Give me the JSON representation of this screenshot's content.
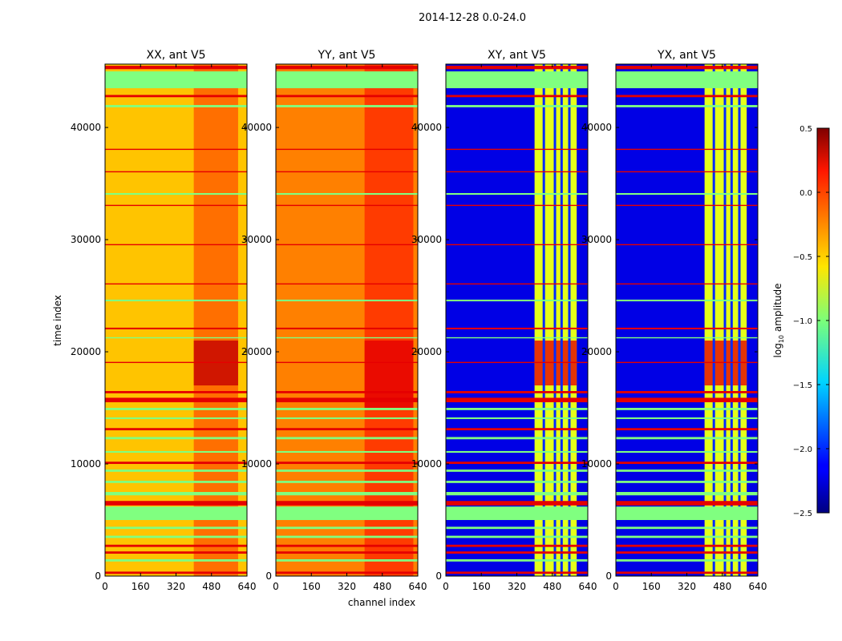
{
  "chart_data": {
    "type": "heatmap",
    "suptitle": "2014-12-28 0.0-24.0",
    "xlabel": "channel index",
    "ylabel": "time index",
    "xlim": [
      0,
      640
    ],
    "ylim": [
      0,
      45650
    ],
    "xticks": [
      "0",
      "160",
      "320",
      "480",
      "640"
    ],
    "xtick_values": [
      0,
      160,
      320,
      480,
      640
    ],
    "yticks": [
      "0",
      "10000",
      "20000",
      "30000",
      "40000"
    ],
    "ytick_values": [
      0,
      10000,
      20000,
      30000,
      40000
    ],
    "colorbar": {
      "label": "log10 amplitude",
      "label_main": "log",
      "label_sub": "10",
      "label_rest": " amplitude",
      "range": [
        -2.5,
        0.5
      ],
      "ticks": [
        "0.5",
        "0.0",
        "−0.5",
        "−1.0",
        "−1.5",
        "−2.0",
        "−2.5"
      ],
      "tick_values": [
        0.5,
        0.0,
        -0.5,
        -1.0,
        -1.5,
        -2.0,
        -2.5
      ],
      "colormap": "jet"
    },
    "panels": [
      {
        "title": "XX, ant V5",
        "base": -0.45,
        "band": [
          400,
          600
        ],
        "band_value": -0.2,
        "hot": [
          17000,
          21000
        ],
        "hot_value": 0.3,
        "band_lines": [],
        "band_line_value": -0.45
      },
      {
        "title": "YY, ant V5",
        "base": -0.25,
        "band": [
          400,
          620
        ],
        "band_value": -0.05,
        "hot": [
          15000,
          21000
        ],
        "hot_value": 0.2,
        "band_lines": [],
        "band_line_value": -0.25
      },
      {
        "title": "XY, ant V5",
        "base": -2.2,
        "band": [
          400,
          590
        ],
        "band_value": -0.7,
        "hot": [
          17000,
          21000
        ],
        "hot_value": 0.2,
        "band_lines": [
          440,
          490,
          520,
          555
        ],
        "band_line_value": -2.0
      },
      {
        "title": "YX, ant V5",
        "base": -2.2,
        "band": [
          400,
          590
        ],
        "band_value": -0.7,
        "hot": [
          17000,
          21000
        ],
        "hot_value": 0.2,
        "band_lines": [
          440,
          490,
          520,
          555
        ],
        "band_line_value": -2.0
      }
    ],
    "horizontal_flags": [
      {
        "t": [
          43500,
          45000
        ],
        "v": -1.0
      },
      {
        "t": [
          45200,
          45500
        ],
        "v": 0.2
      },
      {
        "t": [
          42700,
          42900
        ],
        "v": 0.2
      },
      {
        "t": [
          41800,
          42000
        ],
        "v": -1.0
      },
      {
        "t": [
          38000,
          38100
        ],
        "v": 0.2
      },
      {
        "t": [
          36000,
          36100
        ],
        "v": 0.2
      },
      {
        "t": [
          34000,
          34150
        ],
        "v": -1.0
      },
      {
        "t": [
          33000,
          33100
        ],
        "v": 0.2
      },
      {
        "t": [
          29500,
          29600
        ],
        "v": 0.2
      },
      {
        "t": [
          26000,
          26100
        ],
        "v": 0.2
      },
      {
        "t": [
          24500,
          24650
        ],
        "v": -1.0
      },
      {
        "t": [
          22000,
          22150
        ],
        "v": 0.2
      },
      {
        "t": [
          21200,
          21300
        ],
        "v": -1.0
      },
      {
        "t": [
          19000,
          19100
        ],
        "v": 0.2
      },
      {
        "t": [
          16300,
          16500
        ],
        "v": 0.2
      },
      {
        "t": [
          15500,
          15900
        ],
        "v": 0.2
      },
      {
        "t": [
          14800,
          15000
        ],
        "v": -1.0
      },
      {
        "t": [
          14000,
          14150
        ],
        "v": -1.0
      },
      {
        "t": [
          13000,
          13200
        ],
        "v": 0.2
      },
      {
        "t": [
          12200,
          12400
        ],
        "v": -1.0
      },
      {
        "t": [
          11000,
          11150
        ],
        "v": -1.0
      },
      {
        "t": [
          10000,
          10200
        ],
        "v": 0.2
      },
      {
        "t": [
          9300,
          9500
        ],
        "v": -1.0
      },
      {
        "t": [
          8300,
          8500
        ],
        "v": -1.0
      },
      {
        "t": [
          7200,
          7500
        ],
        "v": -1.0
      },
      {
        "t": [
          6300,
          6700
        ],
        "v": 0.2
      },
      {
        "t": [
          5000,
          6200
        ],
        "v": -1.0
      },
      {
        "t": [
          4200,
          4400
        ],
        "v": -1.0
      },
      {
        "t": [
          3400,
          3600
        ],
        "v": -1.0
      },
      {
        "t": [
          2600,
          2800
        ],
        "v": 0.2
      },
      {
        "t": [
          2000,
          2200
        ],
        "v": 0.2
      },
      {
        "t": [
          1300,
          1500
        ],
        "v": -1.0
      },
      {
        "t": [
          200,
          400
        ],
        "v": 0.2
      }
    ]
  }
}
